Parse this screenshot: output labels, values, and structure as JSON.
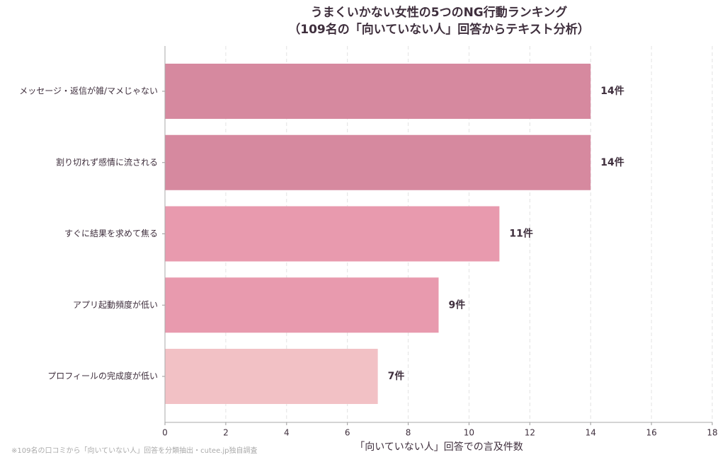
{
  "chart_data": {
    "type": "bar",
    "orientation": "horizontal",
    "title": "うまくいかない女性の5つのNG行動ランキング",
    "subtitle": "（109名の「向いていない人」回答からテキスト分析）",
    "x_label": "「向いていない人」回答での言及件数",
    "note": "※109名の口コミから「向いていない人」回答を分類抽出・cutee.jp独自調査",
    "categories": [
      "メッセージ・返信が雑/マメじゃない",
      "割り切れず感情に流される",
      "すぐに結果を求めて焦る",
      "アプリ起動頻度が低い",
      "プロフィールの完成度が低い"
    ],
    "values": [
      14,
      14,
      11,
      9,
      7
    ],
    "value_labels": [
      "14件",
      "14件",
      "11件",
      "9件",
      "7件"
    ],
    "colors": [
      "#d6899f",
      "#d6899f",
      "#e89aae",
      "#e89aae",
      "#f2c1c5"
    ],
    "xlim": [
      0,
      18
    ],
    "xticks": [
      0,
      2,
      4,
      6,
      8,
      10,
      12,
      14,
      16,
      18
    ],
    "grid": true
  }
}
